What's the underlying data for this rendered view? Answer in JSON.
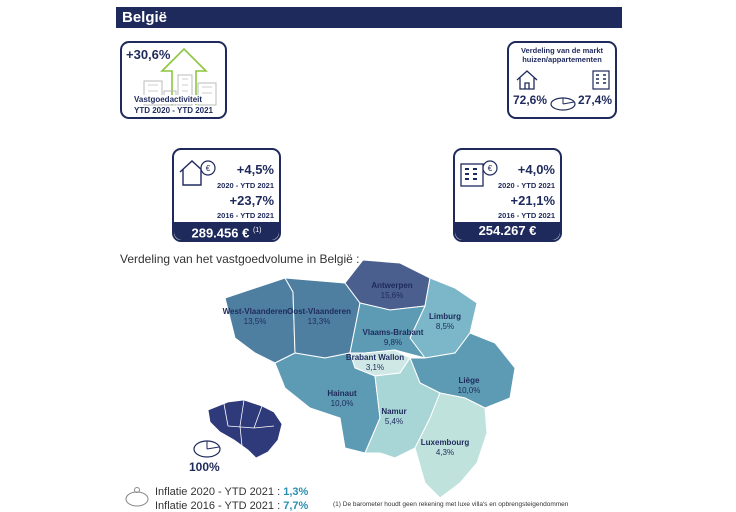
{
  "title": "België",
  "activity": {
    "value": "+30,6%",
    "label": "Vastgoedactiviteit",
    "period": "YTD 2020 - YTD 2021"
  },
  "market_split": {
    "title_line1": "Verdeling van de markt",
    "title_line2": "huizen/appartementen",
    "houses": "72,6%",
    "apartments": "27,4%"
  },
  "house_price": {
    "change1": "+4,5%",
    "period1": "2020 - YTD 2021",
    "change2": "+23,7%",
    "period2": "2016 - YTD 2021",
    "price": "289.456 €",
    "note_ref": "(1)"
  },
  "apartment_price": {
    "change1": "+4,0%",
    "period1": "2020 - YTD 2021",
    "change2": "+21,1%",
    "period2": "2016 - YTD 2021",
    "price": "254.267 €"
  },
  "map": {
    "heading": "Verdeling van het vastgoedvolume in België :",
    "regions": [
      {
        "name": "Antwerpen",
        "value": "15,6%",
        "color": "#4a5f8e"
      },
      {
        "name": "West-Vlaanderen",
        "value": "13,5%",
        "color": "#4f7fa0"
      },
      {
        "name": "Oost-Vlaanderen",
        "value": "13,3%",
        "color": "#4f7fa0"
      },
      {
        "name": "Vlaams-Brabant",
        "value": "9,8%",
        "color": "#5d9ab3"
      },
      {
        "name": "Limburg",
        "value": "8,5%",
        "color": "#7bb7c8"
      },
      {
        "name": "Brabant Wallon",
        "value": "3,1%",
        "color": "#cfe8e6"
      },
      {
        "name": "Hainaut",
        "value": "10,0%",
        "color": "#5d9ab3"
      },
      {
        "name": "Liège",
        "value": "10,0%",
        "color": "#5d9ab3"
      },
      {
        "name": "Namur",
        "value": "5,4%",
        "color": "#a8d5d5"
      },
      {
        "name": "Luxembourg",
        "value": "4,3%",
        "color": "#bfe2dd"
      }
    ],
    "total": "100%"
  },
  "inflation": {
    "line1_label": "Inflatie 2020 - YTD 2021 : ",
    "line1_value": "1,3%",
    "line2_label": "Inflatie 2016 - YTD 2021 : ",
    "line2_value": "7,7%"
  },
  "footnote": "(1) De barometer houdt geen rekening met luxe villa's en opbrengsteigendommen"
}
